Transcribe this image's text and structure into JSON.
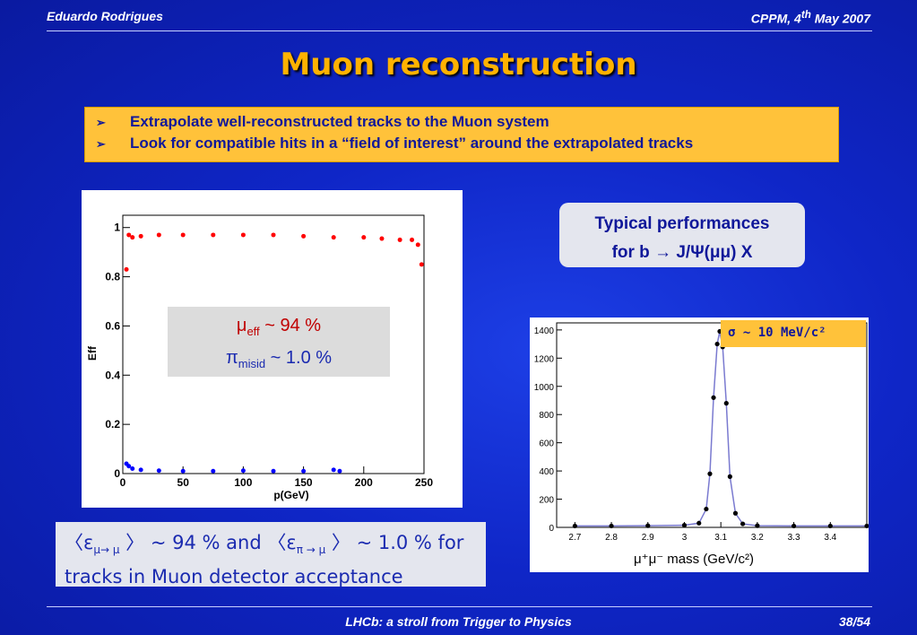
{
  "header": {
    "author": "Eduardo Rodrigues",
    "venue": "CPPM, 4",
    "venue_sup": "th",
    "venue_tail": " May 2007"
  },
  "title": "Muon reconstruction",
  "bullets": [
    "Extrapolate well-reconstructed tracks to the Muon system",
    "Look for compatible hits in a “field of interest” around the extrapolated tracks"
  ],
  "bullet_marker": "➢",
  "overlay": {
    "eff_symbol": "μ",
    "eff_sub": "eff",
    "eff_value": " ~ 94 %",
    "misid_symbol": "π",
    "misid_sub": "misid",
    "misid_value": " ~ 1.0 %"
  },
  "performance": {
    "line1": "Typical performances",
    "line2": "for b → J/Ψ(μμ) X"
  },
  "sigma_label": "σ ~ 10 MeV/c²",
  "summary": {
    "part1": "〈ε",
    "sub1": "μ→ μ",
    "part2": " 〉 ~ 94 % and 〈ε",
    "sub2": "π → μ",
    "part3": " 〉 ~ 1.0 % for",
    "line2": "tracks in Muon detector acceptance"
  },
  "footer": {
    "talk": "LHCb: a stroll from Trigger to Physics",
    "page": "38/54"
  },
  "chart_data": [
    {
      "type": "scatter",
      "xlabel": "p(GeV)",
      "ylabel": "Eff",
      "xlim": [
        0,
        250
      ],
      "ylim": [
        0,
        1.05
      ],
      "xticks": [
        "0",
        "50",
        "100",
        "150",
        "200",
        "250"
      ],
      "yticks": [
        "0",
        "0.2",
        "0.4",
        "0.6",
        "0.8",
        "1"
      ],
      "series": [
        {
          "color": "#ff0000",
          "x": [
            3,
            5,
            8,
            15,
            30,
            50,
            75,
            100,
            125,
            150,
            175,
            200,
            215,
            230,
            240,
            245,
            248
          ],
          "y": [
            0.83,
            0.97,
            0.96,
            0.965,
            0.97,
            0.97,
            0.97,
            0.97,
            0.97,
            0.965,
            0.96,
            0.96,
            0.955,
            0.95,
            0.95,
            0.93,
            0.85
          ]
        },
        {
          "color": "#0000ff",
          "x": [
            3,
            5,
            8,
            15,
            30,
            50,
            75,
            100,
            125,
            150,
            175,
            180
          ],
          "y": [
            0.04,
            0.03,
            0.02,
            0.015,
            0.012,
            0.01,
            0.01,
            0.012,
            0.01,
            0.01,
            0.015,
            0.01
          ]
        }
      ]
    },
    {
      "type": "line",
      "xlabel": "μ⁺μ⁻  mass  (GeV/c²)",
      "xlim": [
        2.65,
        3.5
      ],
      "ylim": [
        0,
        1450
      ],
      "xticks": [
        "2.7",
        "2.8",
        "2.9",
        "3",
        "3.1",
        "3.2",
        "3.3",
        "3.4"
      ],
      "yticks": [
        "0",
        "200",
        "400",
        "600",
        "800",
        "1000",
        "1200",
        "1400"
      ],
      "x": [
        2.7,
        2.8,
        2.9,
        3.0,
        3.04,
        3.06,
        3.07,
        3.08,
        3.09,
        3.097,
        3.105,
        3.115,
        3.125,
        3.14,
        3.16,
        3.2,
        3.3,
        3.4,
        3.5
      ],
      "y": [
        10,
        10,
        12,
        15,
        30,
        130,
        380,
        920,
        1300,
        1390,
        1280,
        880,
        360,
        100,
        25,
        12,
        10,
        10,
        10
      ]
    }
  ]
}
